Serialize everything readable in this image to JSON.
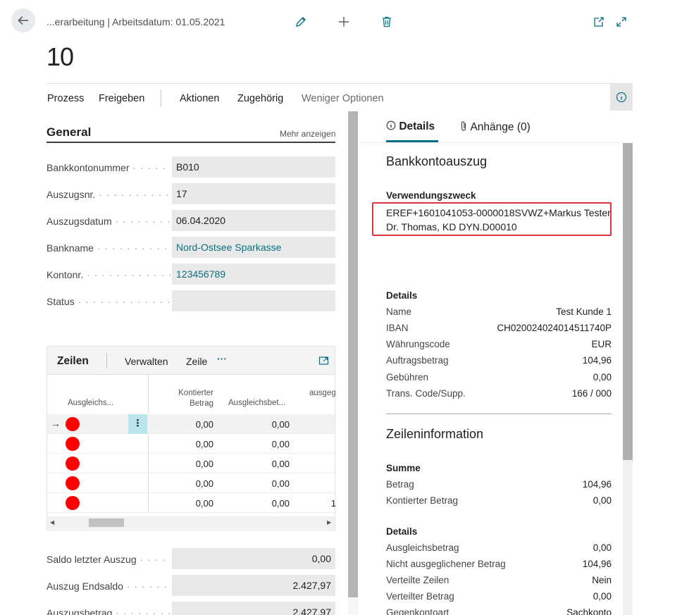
{
  "header": {
    "breadcrumb": "...erarbeitung | Arbeitsdatum: 01.05.2021",
    "title": "10"
  },
  "actions": {
    "prozess": "Prozess",
    "freigeben": "Freigeben",
    "aktionen": "Aktionen",
    "zugehoerig": "Zugehörig",
    "weniger": "Weniger Optionen"
  },
  "general": {
    "title": "General",
    "more": "Mehr anzeigen",
    "fields": [
      {
        "label": "Bankkontonummer",
        "value": "B010"
      },
      {
        "label": "Auszugsnr.",
        "value": "17"
      },
      {
        "label": "Auszugsdatum",
        "value": "06.04.2020"
      },
      {
        "label": "Bankname",
        "value": "Nord-Ostsee Sparkasse"
      },
      {
        "label": "Kontonr.",
        "value": "123456789"
      },
      {
        "label": "Status",
        "value": ""
      }
    ]
  },
  "lines": {
    "title": "Zeilen",
    "verwalten": "Verwalten",
    "zeile": "Zeile",
    "more": "···",
    "columns": {
      "ausgleichs": "Ausgleichs...",
      "kontiert": "Kontierter Betrag",
      "ausgleichsbet": "Ausgleichsbet...",
      "ausgeg": "ausgeg"
    },
    "rows": [
      {
        "kontiert": "0,00",
        "ausgleich": "0,00",
        "extra": ""
      },
      {
        "kontiert": "0,00",
        "ausgleich": "0,00",
        "extra": ""
      },
      {
        "kontiert": "0,00",
        "ausgleich": "0,00",
        "extra": ""
      },
      {
        "kontiert": "0,00",
        "ausgleich": "0,00",
        "extra": ""
      },
      {
        "kontiert": "0,00",
        "ausgleich": "0,00",
        "extra": "1"
      }
    ],
    "selected_row": 0
  },
  "footer": [
    {
      "label": "Saldo letzter Auszug",
      "value": "0,00"
    },
    {
      "label": "Auszug Endsaldo",
      "value": "2.427,97"
    },
    {
      "label": "Auszugsbetrag",
      "value": "2.427,97"
    }
  ],
  "factbox": {
    "tab_details": "Details",
    "tab_attachments": "Anhänge (0)",
    "bankkonto": {
      "title": "Bankkontoauszug",
      "purpose_label": "Verwendungszweck",
      "purpose_line1": "EREF+1601041053-0000018SVWZ+Markus Tester",
      "purpose_line2": "Dr. Thomas, KD DYN.D00010"
    },
    "details1": {
      "title": "Details",
      "rows": [
        {
          "k": "Name",
          "v": "Test Kunde 1"
        },
        {
          "k": "IBAN",
          "v": "CH020024024014511740P"
        },
        {
          "k": "Währungscode",
          "v": "EUR"
        },
        {
          "k": "Auftragsbetrag",
          "v": "104,96"
        },
        {
          "k": "Gebühren",
          "v": "0,00"
        },
        {
          "k": "Trans. Code/Supp.",
          "v": "166 / 000"
        }
      ]
    },
    "zeileninfo": {
      "title": "Zeileninformation",
      "summe_title": "Summe",
      "summe_rows": [
        {
          "k": "Betrag",
          "v": "104,96"
        },
        {
          "k": "Kontierter Betrag",
          "v": "0,00"
        }
      ],
      "details_title": "Details",
      "details_rows": [
        {
          "k": "Ausgleichsbetrag",
          "v": "0,00"
        },
        {
          "k": "Nicht ausgeglichener Betrag",
          "v": "104,96"
        },
        {
          "k": "Verteilte Zeilen",
          "v": "Nein"
        },
        {
          "k": "Verteilter Betrag",
          "v": "0,00"
        },
        {
          "k": "Gegenkontoart",
          "v": "Sachkonto"
        }
      ]
    }
  },
  "colors": {
    "accent": "#0a6f82",
    "status_dot": "#ff0000",
    "highlight_border": "#d9363e"
  }
}
